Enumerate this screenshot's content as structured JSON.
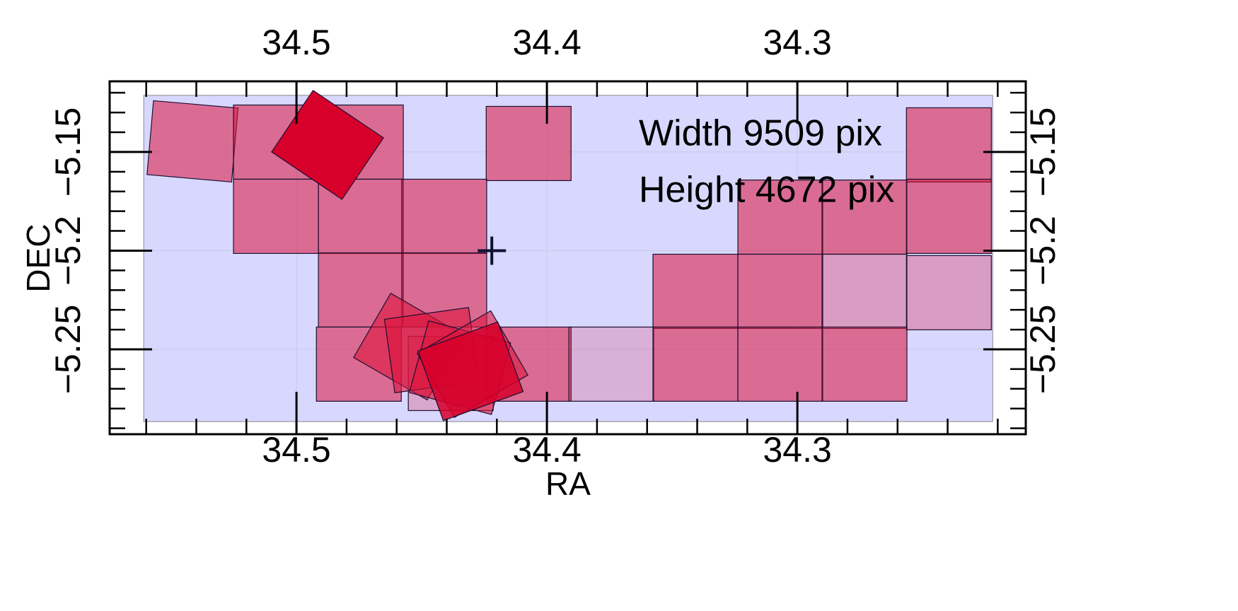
{
  "chart_data": {
    "type": "footprint",
    "x_label": "RA",
    "y_label": "DEC",
    "annotations": [
      "Width 9509 pix",
      "Height 4672 pix"
    ],
    "xlim": [
      34.5746,
      34.2088
    ],
    "ylim": [
      -5.293,
      -5.1142
    ],
    "xticks": [
      34.5,
      34.4,
      34.3
    ],
    "yticks": [
      {
        "value": -5.15,
        "label": "−5.15"
      },
      {
        "value": -5.2,
        "label": "−5.2"
      },
      {
        "value": -5.25,
        "label": "−5.25"
      }
    ],
    "xminorticks": [
      34.56,
      34.54,
      34.52,
      34.5,
      34.48,
      34.46,
      34.44,
      34.42,
      34.4,
      34.38,
      34.36,
      34.34,
      34.32,
      34.3,
      34.28,
      34.26,
      34.24,
      34.22
    ],
    "yminorticks": [
      -5.12,
      -5.13,
      -5.14,
      -5.15,
      -5.16,
      -5.17,
      -5.18,
      -5.19,
      -5.2,
      -5.21,
      -5.22,
      -5.23,
      -5.24,
      -5.25,
      -5.26,
      -5.27,
      -5.28,
      -5.29
    ],
    "grid": true,
    "image_bounds": {
      "ra": [
        34.561,
        34.222
      ],
      "dec": [
        -5.1213,
        -5.2866
      ],
      "color": "#d8d8ff"
    },
    "center": {
      "ra": 34.422,
      "dec": -5.2
    },
    "footprint_size": [
      0.0339,
      0.0376
    ],
    "footprints": [
      {
        "ra": 34.5415,
        "dec": -5.1446,
        "angle": 5,
        "color": "#dc143c",
        "opacity": 0.55
      },
      {
        "ra": 34.5082,
        "dec": -5.145,
        "angle": 0,
        "color": "#dc143c",
        "opacity": 0.55
      },
      {
        "ra": 34.4743,
        "dec": -5.145,
        "angle": 0,
        "color": "#dc143c",
        "opacity": 0.55
      },
      {
        "ra": 34.4073,
        "dec": -5.1457,
        "angle": 0,
        "color": "#dc143c",
        "opacity": 0.55
      },
      {
        "ra": 34.2395,
        "dec": -5.1464,
        "angle": 0,
        "color": "#dc143c",
        "opacity": 0.55
      },
      {
        "ra": 34.5082,
        "dec": -5.1826,
        "angle": 0,
        "color": "#dc143c",
        "opacity": 0.55
      },
      {
        "ra": 34.4743,
        "dec": -5.1826,
        "angle": 0,
        "color": "#dc143c",
        "opacity": 0.55
      },
      {
        "ra": 34.441,
        "dec": -5.1826,
        "angle": 0,
        "color": "#dc143c",
        "opacity": 0.55
      },
      {
        "ra": 34.3068,
        "dec": -5.183,
        "angle": 0,
        "color": "#dc143c",
        "opacity": 0.55
      },
      {
        "ra": 34.2732,
        "dec": -5.183,
        "angle": 0,
        "color": "#dc143c",
        "opacity": 0.55
      },
      {
        "ra": 34.2395,
        "dec": -5.1826,
        "angle": 0,
        "color": "#dc143c",
        "opacity": 0.55
      },
      {
        "ra": 34.4743,
        "dec": -5.2199,
        "angle": 0,
        "color": "#dc143c",
        "opacity": 0.55
      },
      {
        "ra": 34.441,
        "dec": -5.2199,
        "angle": 0,
        "color": "#dc143c",
        "opacity": 0.55
      },
      {
        "ra": 34.3407,
        "dec": -5.2206,
        "angle": 0,
        "color": "#dc143c",
        "opacity": 0.55
      },
      {
        "ra": 34.3068,
        "dec": -5.2206,
        "angle": 0,
        "color": "#dc143c",
        "opacity": 0.55
      },
      {
        "ra": 34.2732,
        "dec": -5.2206,
        "angle": 0,
        "color": "#dc143c",
        "opacity": 0.3
      },
      {
        "ra": 34.2395,
        "dec": -5.2213,
        "angle": 0,
        "color": "#dc143c",
        "opacity": 0.3
      },
      {
        "ra": 34.4751,
        "dec": -5.2575,
        "angle": 0,
        "color": "#dc143c",
        "opacity": 0.55
      },
      {
        "ra": 34.4073,
        "dec": -5.2575,
        "angle": 0,
        "color": "#dc143c",
        "opacity": 0.55
      },
      {
        "ra": 34.3743,
        "dec": -5.2575,
        "angle": 0,
        "color": "#dc143c",
        "opacity": 0.2
      },
      {
        "ra": 34.3407,
        "dec": -5.2575,
        "angle": 0,
        "color": "#dc143c",
        "opacity": 0.55
      },
      {
        "ra": 34.3068,
        "dec": -5.2575,
        "angle": 0,
        "color": "#dc143c",
        "opacity": 0.55
      },
      {
        "ra": 34.2732,
        "dec": -5.2575,
        "angle": 0,
        "color": "#dc143c",
        "opacity": 0.55
      },
      {
        "ra": 34.4384,
        "dec": -5.2622,
        "angle": 0,
        "color": "#dc143c",
        "opacity": 0.25
      },
      {
        "ra": 34.4551,
        "dec": -5.2486,
        "angle": 30,
        "color": "#dc143c",
        "opacity": 0.6
      },
      {
        "ra": 34.446,
        "dec": -5.2504,
        "angle": -8,
        "color": "#dc143c",
        "opacity": 0.6
      },
      {
        "ra": 34.4347,
        "dec": -5.2593,
        "angle": 15,
        "color": "#dc143c",
        "opacity": 0.6
      },
      {
        "ra": 34.4297,
        "dec": -5.2575,
        "angle": -30,
        "color": "#dc143c",
        "opacity": 0.6
      },
      {
        "ra": 34.4305,
        "dec": -5.2611,
        "angle": -20,
        "color": "#d6002a",
        "opacity": 0.85
      },
      {
        "ra": 34.4876,
        "dec": -5.1464,
        "angle": 34,
        "color": "#d6002a",
        "opacity": 1
      }
    ]
  }
}
